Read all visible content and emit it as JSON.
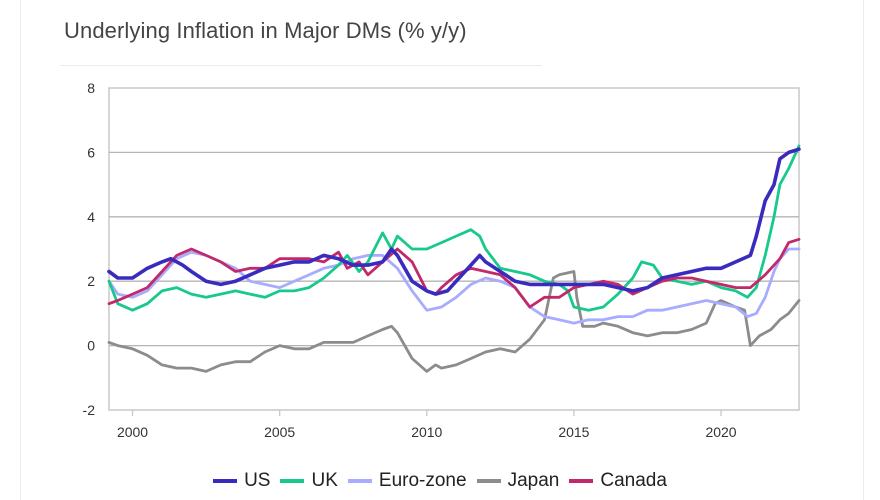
{
  "title": "Underlying Inflation in Major DMs (% y/y)",
  "chart_data": {
    "type": "line",
    "title": "Underlying Inflation in Major DMs (% y/y)",
    "xlabel": "",
    "ylabel": "",
    "xlim": [
      1999.2,
      2022.65
    ],
    "ylim": [
      -2,
      8
    ],
    "yticks": [
      -2,
      0,
      2,
      4,
      6,
      8
    ],
    "ytick_labels": [
      "-2",
      "0",
      "2",
      "4",
      "6",
      "8"
    ],
    "xticks": [
      2000,
      2005,
      2010,
      2015,
      2020
    ],
    "xtick_labels": [
      "2000",
      "2005",
      "2010",
      "2015",
      "2020"
    ],
    "grid": "horizontal",
    "legend_position": "bottom",
    "series": [
      {
        "name": "US",
        "color": "#3a2bbf",
        "x": [
          1999.2,
          1999.5,
          2000.0,
          2000.5,
          2001.0,
          2001.3,
          2001.7,
          2002.0,
          2002.5,
          2003.0,
          2003.5,
          2004.0,
          2004.5,
          2005.0,
          2005.5,
          2006.0,
          2006.5,
          2007.0,
          2007.5,
          2008.0,
          2008.5,
          2008.8,
          2009.0,
          2009.5,
          2010.0,
          2010.3,
          2010.7,
          2011.0,
          2011.5,
          2011.8,
          2012.0,
          2012.5,
          2013.0,
          2013.5,
          2014.0,
          2014.5,
          2015.0,
          2015.5,
          2016.0,
          2016.5,
          2017.0,
          2017.5,
          2018.0,
          2018.5,
          2019.0,
          2019.5,
          2020.0,
          2020.5,
          2021.0,
          2021.2,
          2021.5,
          2021.8,
          2022.0,
          2022.3,
          2022.65
        ],
        "y": [
          2.3,
          2.1,
          2.1,
          2.4,
          2.6,
          2.7,
          2.5,
          2.3,
          2.0,
          1.9,
          2.0,
          2.2,
          2.4,
          2.5,
          2.6,
          2.6,
          2.8,
          2.7,
          2.5,
          2.5,
          2.6,
          3.0,
          2.8,
          2.0,
          1.7,
          1.6,
          1.7,
          2.0,
          2.5,
          2.8,
          2.6,
          2.3,
          2.0,
          1.9,
          1.9,
          1.9,
          1.9,
          1.9,
          1.9,
          1.8,
          1.7,
          1.8,
          2.1,
          2.2,
          2.3,
          2.4,
          2.4,
          2.6,
          2.8,
          3.4,
          4.5,
          5.0,
          5.8,
          6.0,
          6.1
        ]
      },
      {
        "name": "UK",
        "color": "#17c98b",
        "x": [
          1999.2,
          1999.5,
          2000.0,
          2000.5,
          2001.0,
          2001.5,
          2002.0,
          2002.5,
          2003.0,
          2003.5,
          2004.0,
          2004.5,
          2005.0,
          2005.5,
          2006.0,
          2006.5,
          2007.0,
          2007.3,
          2007.7,
          2008.0,
          2008.5,
          2008.8,
          2009.0,
          2009.5,
          2010.0,
          2010.5,
          2011.0,
          2011.5,
          2011.8,
          2012.0,
          2012.5,
          2013.0,
          2013.5,
          2014.0,
          2014.5,
          2014.8,
          2015.0,
          2015.5,
          2016.0,
          2016.5,
          2017.0,
          2017.3,
          2017.7,
          2018.0,
          2018.5,
          2019.0,
          2019.5,
          2020.0,
          2020.5,
          2020.9,
          2021.2,
          2021.5,
          2021.8,
          2022.0,
          2022.3,
          2022.65
        ],
        "y": [
          2.0,
          1.3,
          1.1,
          1.3,
          1.7,
          1.8,
          1.6,
          1.5,
          1.6,
          1.7,
          1.6,
          1.5,
          1.7,
          1.7,
          1.8,
          2.1,
          2.5,
          2.8,
          2.3,
          2.6,
          3.5,
          3.0,
          3.4,
          3.0,
          3.0,
          3.2,
          3.4,
          3.6,
          3.4,
          3.0,
          2.4,
          2.3,
          2.2,
          2.0,
          1.9,
          1.7,
          1.2,
          1.1,
          1.2,
          1.6,
          2.1,
          2.6,
          2.5,
          2.1,
          2.0,
          1.9,
          2.0,
          1.8,
          1.7,
          1.5,
          1.8,
          2.8,
          4.0,
          5.0,
          5.5,
          6.2
        ]
      },
      {
        "name": "Euro-zone",
        "color": "#a8acff",
        "x": [
          1999.2,
          1999.5,
          2000.0,
          2000.5,
          2001.0,
          2001.5,
          2002.0,
          2002.5,
          2003.0,
          2003.5,
          2004.0,
          2004.5,
          2005.0,
          2005.5,
          2006.0,
          2006.5,
          2007.0,
          2007.5,
          2008.0,
          2008.5,
          2009.0,
          2009.5,
          2010.0,
          2010.5,
          2011.0,
          2011.5,
          2012.0,
          2012.5,
          2013.0,
          2013.5,
          2014.0,
          2014.5,
          2015.0,
          2015.5,
          2016.0,
          2016.5,
          2017.0,
          2017.5,
          2018.0,
          2018.5,
          2019.0,
          2019.5,
          2020.0,
          2020.5,
          2020.9,
          2021.2,
          2021.5,
          2021.8,
          2022.0,
          2022.3,
          2022.65
        ],
        "y": [
          2.0,
          1.6,
          1.5,
          1.7,
          2.2,
          2.7,
          2.9,
          2.8,
          2.6,
          2.4,
          2.0,
          1.9,
          1.8,
          2.0,
          2.2,
          2.4,
          2.5,
          2.7,
          2.8,
          2.8,
          2.4,
          1.7,
          1.1,
          1.2,
          1.5,
          1.9,
          2.1,
          2.0,
          1.8,
          1.2,
          0.9,
          0.8,
          0.7,
          0.8,
          0.8,
          0.9,
          0.9,
          1.1,
          1.1,
          1.2,
          1.3,
          1.4,
          1.3,
          1.2,
          0.9,
          1.0,
          1.5,
          2.3,
          2.7,
          3.0,
          3.0
        ]
      },
      {
        "name": "Japan",
        "color": "#8c8c8c",
        "x": [
          1999.2,
          1999.5,
          2000.0,
          2000.5,
          2001.0,
          2001.5,
          2002.0,
          2002.5,
          2003.0,
          2003.5,
          2004.0,
          2004.5,
          2005.0,
          2005.5,
          2006.0,
          2006.5,
          2007.0,
          2007.5,
          2008.0,
          2008.5,
          2008.8,
          2009.0,
          2009.5,
          2010.0,
          2010.3,
          2010.5,
          2011.0,
          2011.5,
          2012.0,
          2012.5,
          2013.0,
          2013.5,
          2014.0,
          2014.3,
          2014.5,
          2015.0,
          2015.1,
          2015.3,
          2015.7,
          2016.0,
          2016.5,
          2017.0,
          2017.5,
          2018.0,
          2018.5,
          2019.0,
          2019.5,
          2019.8,
          2020.0,
          2020.5,
          2020.8,
          2021.0,
          2021.3,
          2021.7,
          2022.0,
          2022.3,
          2022.65
        ],
        "y": [
          0.1,
          0.0,
          -0.1,
          -0.3,
          -0.6,
          -0.7,
          -0.7,
          -0.8,
          -0.6,
          -0.5,
          -0.5,
          -0.2,
          0.0,
          -0.1,
          -0.1,
          0.1,
          0.1,
          0.1,
          0.3,
          0.5,
          0.6,
          0.4,
          -0.4,
          -0.8,
          -0.6,
          -0.7,
          -0.6,
          -0.4,
          -0.2,
          -0.1,
          -0.2,
          0.2,
          0.8,
          2.1,
          2.2,
          2.3,
          1.5,
          0.6,
          0.6,
          0.7,
          0.6,
          0.4,
          0.3,
          0.4,
          0.4,
          0.5,
          0.7,
          1.3,
          1.4,
          1.2,
          1.1,
          0.0,
          0.3,
          0.5,
          0.8,
          1.0,
          1.4
        ]
      },
      {
        "name": "Canada",
        "color": "#c2296b",
        "x": [
          1999.2,
          1999.5,
          2000.0,
          2000.5,
          2001.0,
          2001.5,
          2002.0,
          2002.5,
          2003.0,
          2003.5,
          2004.0,
          2004.5,
          2005.0,
          2005.5,
          2006.0,
          2006.5,
          2007.0,
          2007.3,
          2007.7,
          2008.0,
          2008.5,
          2009.0,
          2009.5,
          2010.0,
          2010.3,
          2010.5,
          2011.0,
          2011.5,
          2012.0,
          2012.5,
          2013.0,
          2013.5,
          2014.0,
          2014.5,
          2015.0,
          2015.5,
          2016.0,
          2016.5,
          2017.0,
          2017.5,
          2018.0,
          2018.5,
          2019.0,
          2019.5,
          2020.0,
          2020.5,
          2021.0,
          2021.5,
          2022.0,
          2022.3,
          2022.65
        ],
        "y": [
          1.3,
          1.4,
          1.6,
          1.8,
          2.3,
          2.8,
          3.0,
          2.8,
          2.6,
          2.3,
          2.4,
          2.4,
          2.7,
          2.7,
          2.7,
          2.6,
          2.9,
          2.4,
          2.6,
          2.2,
          2.6,
          3.0,
          2.6,
          1.7,
          1.6,
          1.8,
          2.2,
          2.4,
          2.3,
          2.2,
          1.8,
          1.2,
          1.5,
          1.5,
          1.8,
          1.9,
          2.0,
          1.9,
          1.6,
          1.8,
          2.0,
          2.1,
          2.1,
          2.0,
          1.9,
          1.8,
          1.8,
          2.2,
          2.7,
          3.2,
          3.3
        ]
      }
    ]
  }
}
